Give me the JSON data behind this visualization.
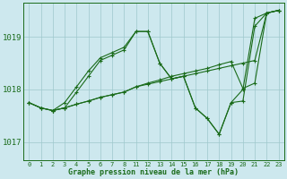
{
  "background_color": "#cde8ee",
  "grid_color": "#9ec8cc",
  "line_color": "#1a6b1a",
  "marker_color": "#1a6b1a",
  "xlabel": "Graphe pression niveau de la mer (hPa)",
  "ylim": [
    1016.65,
    1019.65
  ],
  "yticks": [
    1017,
    1018,
    1019
  ],
  "xlim_left": [
    -0.3,
    8.3
  ],
  "xlim_right": [
    10.7,
    23.3
  ],
  "series": [
    {
      "x": [
        0,
        1,
        2,
        3,
        4,
        5,
        6,
        7,
        8,
        11,
        12,
        13,
        14,
        15,
        16,
        17,
        18,
        19,
        20,
        21,
        22,
        23
      ],
      "y": [
        1017.75,
        1017.65,
        1017.6,
        1017.65,
        1017.95,
        1018.25,
        1018.55,
        1018.65,
        1018.75,
        1019.1,
        1019.1,
        1018.5,
        1018.2,
        1018.25,
        1017.65,
        1017.45,
        1017.15,
        1017.75,
        1018.0,
        1019.35,
        1019.45,
        1019.5
      ]
    },
    {
      "x": [
        0,
        1,
        2,
        3,
        4,
        5,
        6,
        7,
        8,
        11,
        12,
        13,
        14,
        15,
        16,
        17,
        18,
        19,
        20,
        21,
        22,
        23
      ],
      "y": [
        1017.75,
        1017.65,
        1017.6,
        1017.65,
        1017.72,
        1017.78,
        1017.85,
        1017.9,
        1017.95,
        1018.05,
        1018.1,
        1018.15,
        1018.2,
        1018.25,
        1018.3,
        1018.35,
        1018.4,
        1018.45,
        1018.5,
        1018.55,
        1019.45,
        1019.5
      ]
    },
    {
      "x": [
        0,
        1,
        2,
        3,
        4,
        5,
        6,
        7,
        8,
        11,
        12,
        13,
        14,
        15,
        16,
        17,
        18,
        19,
        20,
        21,
        22,
        23
      ],
      "y": [
        1017.75,
        1017.65,
        1017.6,
        1017.65,
        1017.72,
        1017.78,
        1017.85,
        1017.9,
        1017.95,
        1018.05,
        1018.12,
        1018.18,
        1018.25,
        1018.3,
        1018.35,
        1018.4,
        1018.47,
        1018.53,
        1018.02,
        1018.12,
        1019.45,
        1019.5
      ]
    },
    {
      "x": [
        2,
        3,
        4,
        5,
        6,
        7,
        8,
        11,
        12,
        13,
        14,
        15,
        16,
        17,
        18,
        19,
        20,
        21,
        22,
        23
      ],
      "y": [
        1017.6,
        1017.75,
        1018.05,
        1018.35,
        1018.6,
        1018.7,
        1018.8,
        1019.1,
        1019.1,
        1018.5,
        1018.2,
        1018.25,
        1017.65,
        1017.45,
        1017.15,
        1017.75,
        1017.78,
        1019.2,
        1019.45,
        1019.5
      ]
    }
  ]
}
